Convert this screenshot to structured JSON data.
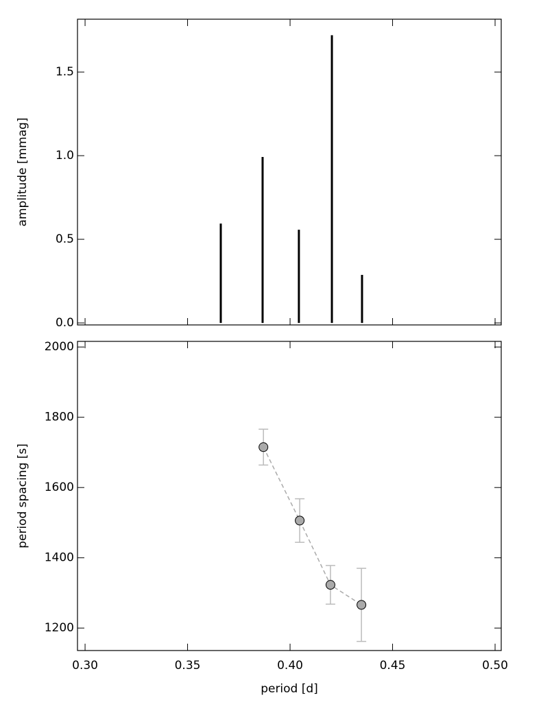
{
  "chart_data": [
    {
      "type": "bar",
      "y_label": "amplitude [mmag]",
      "x": [
        0.3662,
        0.3866,
        0.4043,
        0.4204,
        0.4351
      ],
      "values": [
        0.594,
        0.992,
        0.557,
        1.72,
        0.287
      ],
      "color": "#000000",
      "xlim": [
        0.2963,
        0.503
      ],
      "ylim": [
        -0.012,
        1.816
      ],
      "xticks": [
        {
          "value": 0.3,
          "label": "0.30"
        },
        0.35,
        {
          "value": 0.4,
          "label": "0.40"
        },
        0.45,
        {
          "value": 0.5,
          "label": "0.50"
        }
      ],
      "yticks": [
        {
          "value": 0,
          "label": "0.0"
        },
        0.5,
        {
          "value": 1,
          "label": "1.0"
        },
        1.5
      ],
      "show_xtick_labels": false
    },
    {
      "type": "scatter",
      "x_label": "period [d]",
      "y_label": "period spacing [s]",
      "x": [
        0.387,
        0.4047,
        0.4197,
        0.4348
      ],
      "values": [
        1715,
        1506,
        1323,
        1266
      ],
      "errors": [
        51,
        62,
        55,
        104
      ],
      "color": "#aaaaaa",
      "line_color": "#aaaaaa",
      "error_color": "#bbbbbb",
      "xlim": [
        0.2963,
        0.503
      ],
      "ylim": [
        1136,
        2016
      ],
      "xticks": [
        {
          "value": 0.3,
          "label": "0.30"
        },
        0.35,
        {
          "value": 0.4,
          "label": "0.40"
        },
        0.45,
        {
          "value": 0.5,
          "label": "0.50"
        }
      ],
      "yticks": [
        1200,
        1400,
        1600,
        1800,
        2000
      ],
      "show_xtick_labels": true
    }
  ]
}
